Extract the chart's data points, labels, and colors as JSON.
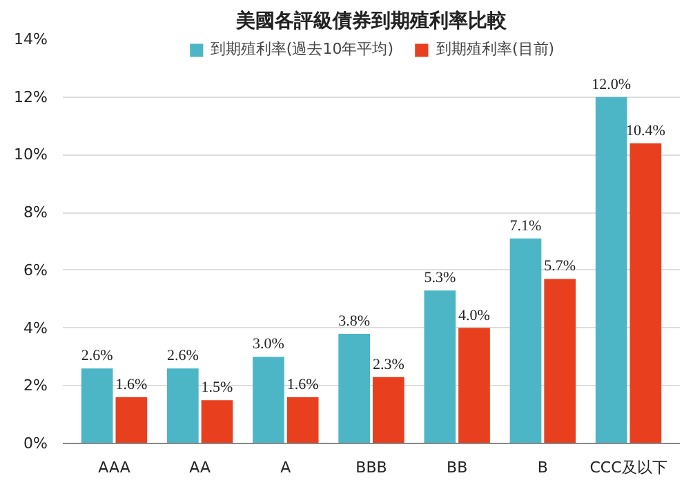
{
  "chart_data": {
    "type": "bar",
    "title": "美國各評級債券到期殖利率比較",
    "categories": [
      "AAA",
      "AA",
      "A",
      "BBB",
      "BB",
      "B",
      "CCC及以下"
    ],
    "series": [
      {
        "name": "到期殖利率(過去10年平均)",
        "color": "#4db6c6",
        "values": [
          2.6,
          2.6,
          3.0,
          3.8,
          5.3,
          7.1,
          12.0
        ],
        "value_labels": [
          "2.6%",
          "2.6%",
          "3.0%",
          "3.8%",
          "5.3%",
          "7.1%",
          "12.0%"
        ]
      },
      {
        "name": "到期殖利率(目前)",
        "color": "#e8401e",
        "values": [
          1.6,
          1.5,
          1.6,
          2.3,
          4.0,
          5.7,
          10.4
        ],
        "value_labels": [
          "1.6%",
          "1.5%",
          "1.6%",
          "2.3%",
          "4.0%",
          "5.7%",
          "10.4%"
        ]
      }
    ],
    "ylim": [
      0,
      14
    ],
    "yticks": [
      {
        "value": 0,
        "label": "0%"
      },
      {
        "value": 2,
        "label": "2%"
      },
      {
        "value": 4,
        "label": "4%"
      },
      {
        "value": 6,
        "label": "6%"
      },
      {
        "value": 8,
        "label": "8%"
      },
      {
        "value": 10,
        "label": "10%"
      },
      {
        "value": 12,
        "label": "12%"
      },
      {
        "value": 14,
        "label": "14%"
      }
    ],
    "grid": "y",
    "legend": "top"
  }
}
